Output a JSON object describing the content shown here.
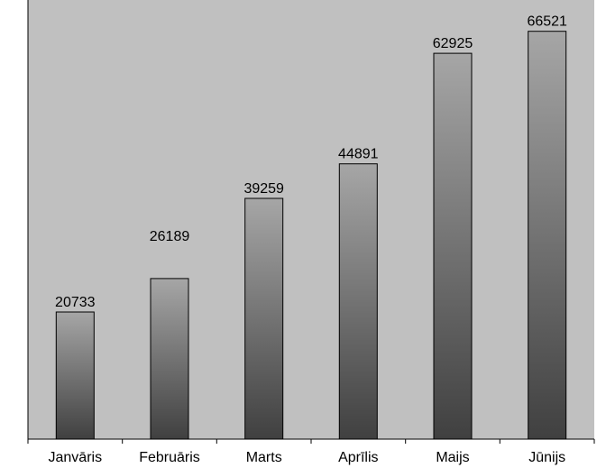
{
  "chart_data": {
    "type": "bar",
    "title": "",
    "xlabel": "",
    "ylabel": "",
    "categories": [
      "Janvāris",
      "Februāris",
      "Marts",
      "Aprīlis",
      "Maijs",
      "Jūnijs"
    ],
    "values": [
      20733,
      26189,
      39259,
      44891,
      62925,
      66521
    ],
    "data_labels": [
      "20733",
      "26189",
      "39259",
      "44891",
      "62925",
      "66521"
    ],
    "ylim": [
      0,
      70000
    ],
    "grid": false,
    "legend": "none",
    "colors": {
      "plot_background": "#c0c0c0",
      "bar_top": "#a6a6a6",
      "bar_bottom": "#404040",
      "bar_stroke": "#000000",
      "axis": "#000000"
    }
  }
}
